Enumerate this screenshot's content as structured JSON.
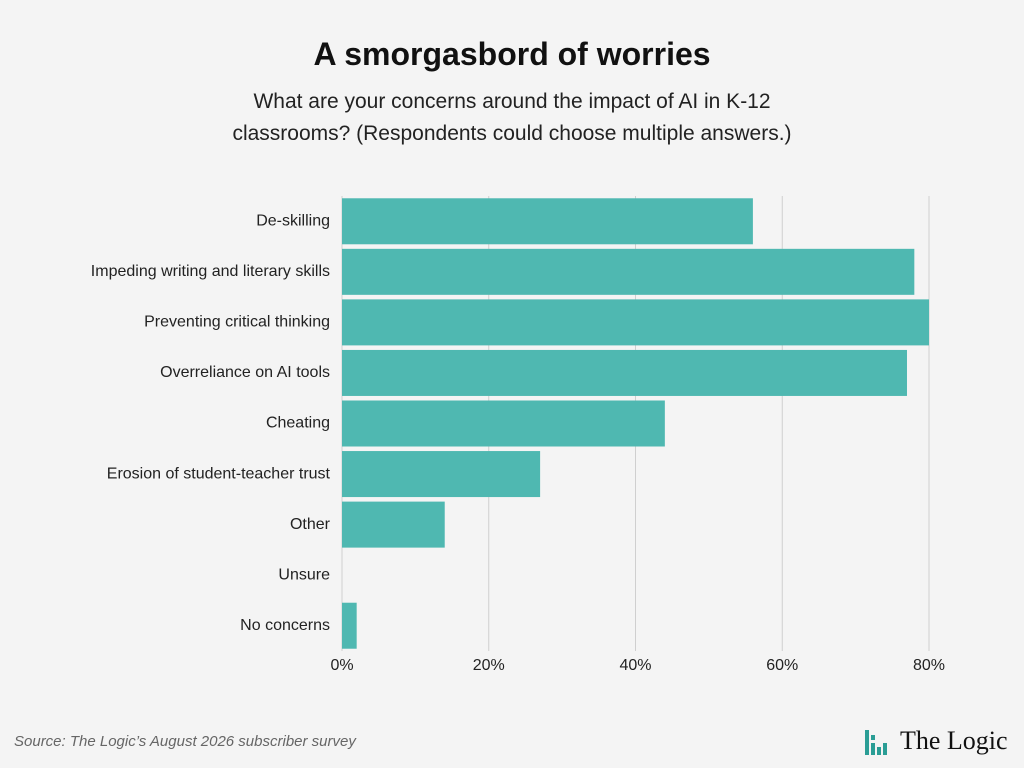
{
  "chart_data": {
    "type": "barh",
    "title": "A smorgasbord of worries",
    "subtitle": "What are your concerns around the impact of AI in K-12 classrooms? (Respondents could choose multiple answers.)",
    "categories": [
      "De-skilling",
      "Impeding writing and literary skills",
      "Preventing critical thinking",
      "Overreliance on AI tools",
      "Cheating",
      "Erosion of student-teacher trust",
      "Other",
      "Unsure",
      "No concerns"
    ],
    "values": [
      56,
      78,
      80,
      77,
      44,
      27,
      14,
      0,
      2
    ],
    "color": "#4fb8b1",
    "xlim": [
      0,
      80
    ],
    "xticks": [
      {
        "value": 0,
        "label": "0%"
      },
      {
        "value": 20,
        "label": "20%"
      },
      {
        "value": 40,
        "label": "40%"
      },
      {
        "value": 60,
        "label": "60%"
      },
      {
        "value": 80,
        "label": "80%"
      }
    ],
    "grid": true,
    "source": "Source: The Logic’s August 2026 subscriber survey",
    "brand": "The Logic"
  }
}
